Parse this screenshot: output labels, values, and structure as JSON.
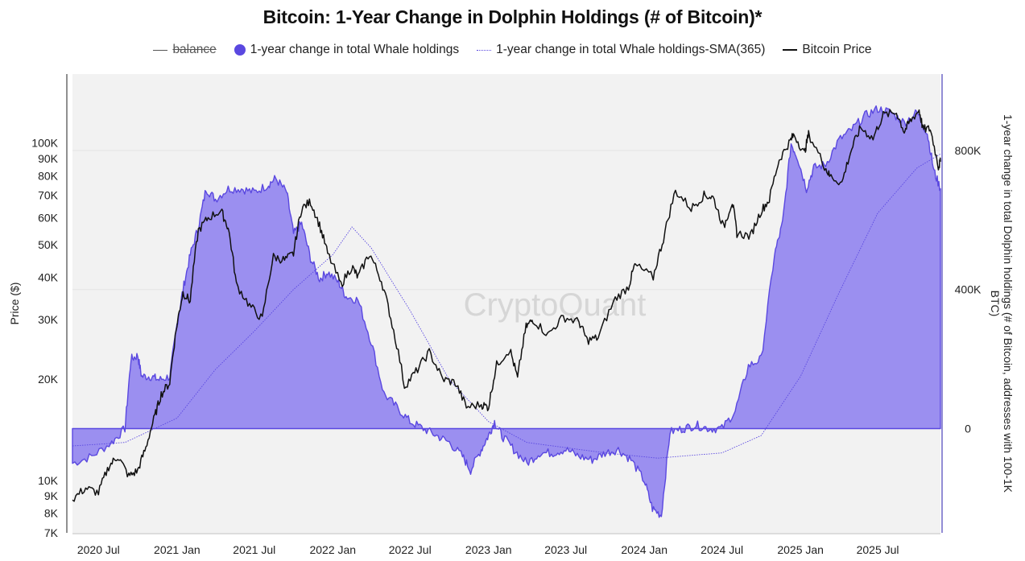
{
  "chart_data": {
    "type": "area",
    "title": "Bitcoin: 1-Year Change in Dolphin Holdings (# of Bitcoin)*",
    "watermark": "CryptoQuant",
    "legend": [
      {
        "label": "balance",
        "state": "hidden"
      },
      {
        "label": "1-year change in total Whale holdings",
        "state": "visible"
      },
      {
        "label": "1-year change in total Whale holdings-SMA(365)",
        "state": "visible"
      },
      {
        "label": "Bitcoin Price",
        "state": "visible"
      }
    ],
    "y_left": {
      "label": "Price ($)",
      "scale": "log",
      "range": [
        7000,
        160000
      ],
      "ticks": [
        {
          "v": 7000,
          "t": "7K"
        },
        {
          "v": 8000,
          "t": "8K"
        },
        {
          "v": 9000,
          "t": "9K"
        },
        {
          "v": 10000,
          "t": "10K"
        },
        {
          "v": 20000,
          "t": "20K"
        },
        {
          "v": 30000,
          "t": "30K"
        },
        {
          "v": 40000,
          "t": "40K"
        },
        {
          "v": 50000,
          "t": "50K"
        },
        {
          "v": 60000,
          "t": "60K"
        },
        {
          "v": 70000,
          "t": "70K"
        },
        {
          "v": 80000,
          "t": "80K"
        },
        {
          "v": 90000,
          "t": "90K"
        },
        {
          "v": 100000,
          "t": "100K"
        }
      ]
    },
    "y_right": {
      "label": "1-year change in total Dolphin holdings (# of Bitcoin, addresses with 100-1K BTC)",
      "range": [
        -300000,
        1020000
      ],
      "ticks": [
        {
          "v": 0,
          "t": "0"
        },
        {
          "v": 400000,
          "t": "400K"
        },
        {
          "v": 800000,
          "t": "800K"
        }
      ]
    },
    "x_axis": {
      "range": [
        "2020-05-01",
        "2025-11-25"
      ],
      "ticks": [
        {
          "v": "2020-07-01",
          "t": "2020 Jul"
        },
        {
          "v": "2021-01-01",
          "t": "2021 Jan"
        },
        {
          "v": "2021-07-01",
          "t": "2021 Jul"
        },
        {
          "v": "2022-01-01",
          "t": "2022 Jan"
        },
        {
          "v": "2022-07-01",
          "t": "2022 Jul"
        },
        {
          "v": "2023-01-01",
          "t": "2023 Jan"
        },
        {
          "v": "2023-07-01",
          "t": "2023 Jul"
        },
        {
          "v": "2024-01-01",
          "t": "2024 Jan"
        },
        {
          "v": "2024-07-01",
          "t": "2024 Jul"
        },
        {
          "v": "2025-01-01",
          "t": "2025 Jan"
        },
        {
          "v": "2025-07-01",
          "t": "2025 Jul"
        }
      ]
    },
    "colors": {
      "area": "#5a48e0",
      "area_fill": "#9b8ff0",
      "price": "#111111",
      "sma": "#5a48e0",
      "plot_bg": "#f2f2f2"
    },
    "series": {
      "whale_change_1y": [
        [
          "2020-05-01",
          -100000
        ],
        [
          "2020-06-15",
          -80000
        ],
        [
          "2020-08-01",
          -40000
        ],
        [
          "2020-09-01",
          0
        ],
        [
          "2020-09-15",
          200000
        ],
        [
          "2020-10-01",
          210000
        ],
        [
          "2020-10-10",
          150000
        ],
        [
          "2020-11-01",
          150000
        ],
        [
          "2020-11-20",
          140000
        ],
        [
          "2020-12-15",
          150000
        ],
        [
          "2021-01-01",
          300000
        ],
        [
          "2021-01-15",
          400000
        ],
        [
          "2021-02-01",
          500000
        ],
        [
          "2021-02-20",
          580000
        ],
        [
          "2021-03-10",
          690000
        ],
        [
          "2021-04-01",
          660000
        ],
        [
          "2021-05-01",
          690000
        ],
        [
          "2021-06-01",
          690000
        ],
        [
          "2021-07-01",
          680000
        ],
        [
          "2021-08-01",
          700000
        ],
        [
          "2021-08-20",
          720000
        ],
        [
          "2021-09-15",
          680000
        ],
        [
          "2021-10-01",
          560000
        ],
        [
          "2021-10-20",
          590000
        ],
        [
          "2021-11-10",
          490000
        ],
        [
          "2021-12-01",
          430000
        ],
        [
          "2021-12-20",
          450000
        ],
        [
          "2022-01-15",
          420000
        ],
        [
          "2022-02-01",
          380000
        ],
        [
          "2022-03-01",
          370000
        ],
        [
          "2022-04-01",
          250000
        ],
        [
          "2022-05-01",
          100000
        ],
        [
          "2022-06-01",
          60000
        ],
        [
          "2022-07-01",
          20000
        ],
        [
          "2022-08-01",
          0
        ],
        [
          "2022-09-01",
          -20000
        ],
        [
          "2022-10-01",
          -40000
        ],
        [
          "2022-11-01",
          -80000
        ],
        [
          "2022-11-20",
          -120000
        ],
        [
          "2022-12-15",
          -60000
        ],
        [
          "2023-01-01",
          -20000
        ],
        [
          "2023-01-15",
          20000
        ],
        [
          "2023-02-01",
          -20000
        ],
        [
          "2023-03-01",
          -60000
        ],
        [
          "2023-04-01",
          -100000
        ],
        [
          "2023-05-01",
          -70000
        ],
        [
          "2023-06-01",
          -70000
        ],
        [
          "2023-07-01",
          -60000
        ],
        [
          "2023-08-01",
          -80000
        ],
        [
          "2023-09-01",
          -90000
        ],
        [
          "2023-10-01",
          -70000
        ],
        [
          "2023-11-01",
          -60000
        ],
        [
          "2023-12-01",
          -90000
        ],
        [
          "2024-01-01",
          -150000
        ],
        [
          "2024-01-20",
          -230000
        ],
        [
          "2024-02-10",
          -250000
        ],
        [
          "2024-03-01",
          -10000
        ],
        [
          "2024-04-01",
          0
        ],
        [
          "2024-05-01",
          10000
        ],
        [
          "2024-06-01",
          0
        ],
        [
          "2024-07-01",
          0
        ],
        [
          "2024-08-01",
          50000
        ],
        [
          "2024-09-01",
          180000
        ],
        [
          "2024-10-01",
          200000
        ],
        [
          "2024-11-01",
          500000
        ],
        [
          "2024-11-20",
          590000
        ],
        [
          "2024-12-10",
          820000
        ],
        [
          "2024-12-25",
          780000
        ],
        [
          "2025-01-15",
          690000
        ],
        [
          "2025-02-01",
          750000
        ],
        [
          "2025-03-01",
          760000
        ],
        [
          "2025-04-01",
          830000
        ],
        [
          "2025-05-01",
          860000
        ],
        [
          "2025-06-01",
          900000
        ],
        [
          "2025-07-01",
          920000
        ],
        [
          "2025-08-01",
          910000
        ],
        [
          "2025-09-01",
          880000
        ],
        [
          "2025-10-01",
          910000
        ],
        [
          "2025-10-25",
          850000
        ],
        [
          "2025-11-10",
          740000
        ],
        [
          "2025-11-25",
          690000
        ]
      ],
      "whale_change_sma365": [
        [
          "2020-05-01",
          -50000
        ],
        [
          "2020-09-01",
          -40000
        ],
        [
          "2021-01-01",
          30000
        ],
        [
          "2021-04-01",
          170000
        ],
        [
          "2021-07-01",
          280000
        ],
        [
          "2021-10-01",
          400000
        ],
        [
          "2022-01-01",
          500000
        ],
        [
          "2022-02-15",
          580000
        ],
        [
          "2022-04-01",
          520000
        ],
        [
          "2022-07-01",
          340000
        ],
        [
          "2022-10-01",
          140000
        ],
        [
          "2023-01-01",
          20000
        ],
        [
          "2023-04-01",
          -40000
        ],
        [
          "2023-07-01",
          -55000
        ],
        [
          "2023-10-01",
          -70000
        ],
        [
          "2024-02-01",
          -85000
        ],
        [
          "2024-07-01",
          -70000
        ],
        [
          "2024-10-01",
          -20000
        ],
        [
          "2025-01-01",
          150000
        ],
        [
          "2025-04-01",
          390000
        ],
        [
          "2025-07-01",
          620000
        ],
        [
          "2025-10-01",
          750000
        ],
        [
          "2025-11-25",
          790000
        ]
      ],
      "bitcoin_price": [
        [
          "2020-05-01",
          8800
        ],
        [
          "2020-06-01",
          9500
        ],
        [
          "2020-07-01",
          9200
        ],
        [
          "2020-07-25",
          11000
        ],
        [
          "2020-08-15",
          11800
        ],
        [
          "2020-09-10",
          10300
        ],
        [
          "2020-10-01",
          10700
        ],
        [
          "2020-10-20",
          12500
        ],
        [
          "2020-11-10",
          15500
        ],
        [
          "2020-11-25",
          18000
        ],
        [
          "2020-12-15",
          19500
        ],
        [
          "2021-01-01",
          29000
        ],
        [
          "2021-01-15",
          36000
        ],
        [
          "2021-02-01",
          34000
        ],
        [
          "2021-02-20",
          55000
        ],
        [
          "2021-03-15",
          60000
        ],
        [
          "2021-04-14",
          63000
        ],
        [
          "2021-05-01",
          56000
        ],
        [
          "2021-05-20",
          38000
        ],
        [
          "2021-06-20",
          33000
        ],
        [
          "2021-07-20",
          30000
        ],
        [
          "2021-08-15",
          46000
        ],
        [
          "2021-09-10",
          45000
        ],
        [
          "2021-10-01",
          47000
        ],
        [
          "2021-10-20",
          64000
        ],
        [
          "2021-11-10",
          67000
        ],
        [
          "2021-12-01",
          57000
        ],
        [
          "2021-12-20",
          47000
        ],
        [
          "2022-01-20",
          38000
        ],
        [
          "2022-02-15",
          43000
        ],
        [
          "2022-03-01",
          40000
        ],
        [
          "2022-03-28",
          47000
        ],
        [
          "2022-04-25",
          39000
        ],
        [
          "2022-05-20",
          29000
        ],
        [
          "2022-06-18",
          19000
        ],
        [
          "2022-07-15",
          21000
        ],
        [
          "2022-08-15",
          24000
        ],
        [
          "2022-09-15",
          20000
        ],
        [
          "2022-10-15",
          19500
        ],
        [
          "2022-11-10",
          16500
        ],
        [
          "2022-12-15",
          16800
        ],
        [
          "2023-01-01",
          16500
        ],
        [
          "2023-01-20",
          22000
        ],
        [
          "2023-02-20",
          24500
        ],
        [
          "2023-03-10",
          20000
        ],
        [
          "2023-03-30",
          28500
        ],
        [
          "2023-04-15",
          30000
        ],
        [
          "2023-05-20",
          27000
        ],
        [
          "2023-06-25",
          30500
        ],
        [
          "2023-08-01",
          29500
        ],
        [
          "2023-08-20",
          26000
        ],
        [
          "2023-09-15",
          26500
        ],
        [
          "2023-10-25",
          34500
        ],
        [
          "2023-11-25",
          37500
        ],
        [
          "2023-12-10",
          43500
        ],
        [
          "2024-01-22",
          40000
        ],
        [
          "2024-02-15",
          52000
        ],
        [
          "2024-03-14",
          72000
        ],
        [
          "2024-04-20",
          64000
        ],
        [
          "2024-05-20",
          70000
        ],
        [
          "2024-06-10",
          69000
        ],
        [
          "2024-07-05",
          56000
        ],
        [
          "2024-07-25",
          67000
        ],
        [
          "2024-08-05",
          54000
        ],
        [
          "2024-09-06",
          53000
        ],
        [
          "2024-10-01",
          63000
        ],
        [
          "2024-10-20",
          68000
        ],
        [
          "2024-11-12",
          89000
        ],
        [
          "2024-12-05",
          100000
        ],
        [
          "2024-12-17",
          106000
        ],
        [
          "2025-01-10",
          93000
        ],
        [
          "2025-01-20",
          106000
        ],
        [
          "2025-02-25",
          86000
        ],
        [
          "2025-03-10",
          80000
        ],
        [
          "2025-04-08",
          76000
        ],
        [
          "2025-05-01",
          96000
        ],
        [
          "2025-05-22",
          111000
        ],
        [
          "2025-06-20",
          103000
        ],
        [
          "2025-07-14",
          121000
        ],
        [
          "2025-08-14",
          123000
        ],
        [
          "2025-09-01",
          108000
        ],
        [
          "2025-09-15",
          116000
        ],
        [
          "2025-10-06",
          125000
        ],
        [
          "2025-10-15",
          110000
        ],
        [
          "2025-11-01",
          110000
        ],
        [
          "2025-11-20",
          85000
        ],
        [
          "2025-11-25",
          88000
        ]
      ]
    }
  }
}
